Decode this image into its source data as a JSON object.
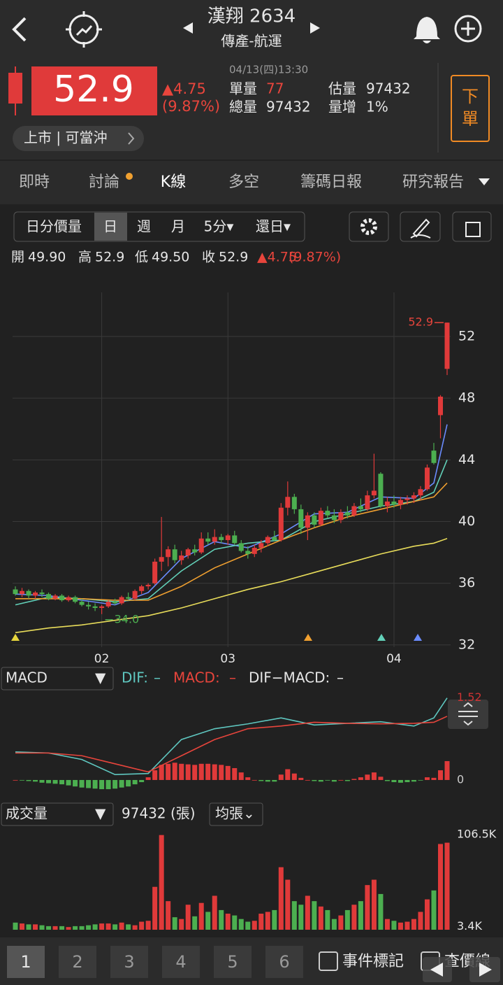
{
  "header": {
    "title": "漢翔 2634",
    "subtitle": "傳產-航運"
  },
  "quote": {
    "price": "52.9",
    "change": "▲4.75",
    "change_pct": "(9.87%)",
    "datetime": "04/13(四)13:30",
    "fields": [
      {
        "label": "單量",
        "value": "77"
      },
      {
        "label": "總量",
        "value": "97432"
      },
      {
        "label": "估量",
        "value": "97432"
      },
      {
        "label": "量增",
        "value": "1%"
      }
    ],
    "order_button": [
      "下",
      "單"
    ],
    "badge": "上市 | 可當沖"
  },
  "tabs": [
    "即時",
    "討論",
    "K線",
    "多空",
    "籌碼日報",
    "研究報告"
  ],
  "toolbar": [
    "日分價量",
    "日",
    "週",
    "月",
    "5分▾",
    "還日▾"
  ],
  "ohlc_bar": [
    "開",
    "49.90",
    "高",
    "52.9",
    "低",
    "49.50",
    "收",
    "52.9",
    "▲4.75",
    "(9.87%)"
  ],
  "macd_bar": {
    "selector": "MACD",
    "arrow": "▼",
    "items": [
      "DIF:",
      "–",
      "MACD:",
      "–",
      "DIF−MACD:",
      "–"
    ]
  },
  "volume_bar": {
    "selector": "成交量",
    "arrow": "▼",
    "total": "97432 (張)",
    "unit_button": "均張⌄"
  },
  "bottom_bar": {
    "tabs": [
      "1",
      "2",
      "3",
      "4",
      "5",
      "6"
    ],
    "checks": [
      "事件標記",
      "查價線"
    ]
  },
  "chart_data": [
    {
      "type": "candlestick",
      "ylim": [
        30.5,
        55.9
      ],
      "yticks": [
        32,
        36,
        40,
        44,
        48,
        52
      ],
      "grid": true,
      "categories": [
        null,
        null,
        null,
        null,
        null,
        null,
        null,
        null,
        null,
        null,
        null,
        null,
        null,
        "02",
        null,
        null,
        null,
        null,
        null,
        null,
        null,
        null,
        null,
        null,
        null,
        null,
        null,
        null,
        null,
        null,
        null,
        null,
        "03",
        null,
        null,
        null,
        null,
        null,
        null,
        null,
        null,
        null,
        null,
        null,
        null,
        null,
        null,
        null,
        null,
        null,
        null,
        null,
        null,
        null,
        null,
        null,
        null,
        "04",
        null,
        null,
        null,
        null,
        null,
        null,
        null,
        null
      ],
      "ohlc": [
        [
          35.6,
          35.8,
          35.2,
          35.3
        ],
        [
          35.3,
          35.7,
          35.1,
          35.5
        ],
        [
          35.5,
          35.6,
          35.0,
          35.2
        ],
        [
          35.2,
          35.5,
          35.0,
          35.4
        ],
        [
          35.4,
          35.6,
          35.1,
          35.3
        ],
        [
          35.3,
          35.4,
          34.9,
          35.0
        ],
        [
          35.0,
          35.3,
          34.9,
          35.2
        ],
        [
          35.2,
          35.3,
          34.8,
          34.9
        ],
        [
          34.9,
          35.2,
          34.8,
          35.1
        ],
        [
          35.1,
          35.2,
          34.7,
          34.8
        ],
        [
          34.8,
          35.0,
          34.5,
          34.6
        ],
        [
          34.6,
          34.8,
          34.3,
          34.5
        ],
        [
          34.5,
          34.7,
          34.2,
          34.4
        ],
        [
          34.4,
          34.6,
          34.0,
          34.5
        ],
        [
          34.5,
          34.9,
          34.4,
          34.8
        ],
        [
          34.8,
          35.0,
          34.6,
          34.7
        ],
        [
          34.7,
          35.2,
          34.6,
          35.1
        ],
        [
          35.1,
          35.4,
          34.9,
          35.0
        ],
        [
          35.0,
          35.6,
          34.9,
          35.5
        ],
        [
          35.5,
          35.9,
          35.3,
          35.8
        ],
        [
          35.8,
          36.0,
          35.6,
          35.9
        ],
        [
          36.0,
          37.6,
          35.9,
          37.4
        ],
        [
          37.4,
          40.3,
          36.8,
          37.7
        ],
        [
          37.7,
          38.4,
          37.1,
          38.2
        ],
        [
          38.2,
          38.5,
          37.3,
          37.5
        ],
        [
          37.5,
          38.1,
          37.2,
          37.8
        ],
        [
          37.8,
          38.3,
          37.6,
          38.2
        ],
        [
          38.2,
          38.5,
          37.8,
          38.0
        ],
        [
          38.0,
          39.3,
          37.9,
          38.9
        ],
        [
          38.9,
          39.3,
          38.5,
          38.7
        ],
        [
          38.7,
          39.5,
          38.5,
          39.0
        ],
        [
          39.0,
          39.2,
          38.6,
          38.8
        ],
        [
          38.8,
          39.2,
          38.5,
          39.1
        ],
        [
          39.1,
          39.4,
          38.5,
          38.6
        ],
        [
          38.6,
          38.8,
          38.0,
          38.1
        ],
        [
          38.1,
          38.4,
          37.6,
          37.9
        ],
        [
          37.9,
          38.5,
          37.7,
          38.3
        ],
        [
          38.3,
          38.8,
          38.0,
          38.6
        ],
        [
          38.6,
          39.1,
          38.4,
          39.0
        ],
        [
          39.0,
          39.4,
          38.7,
          38.8
        ],
        [
          38.8,
          41.2,
          38.7,
          40.9
        ],
        [
          40.9,
          42.6,
          40.4,
          41.6
        ],
        [
          41.6,
          41.8,
          40.5,
          40.8
        ],
        [
          40.8,
          41.1,
          39.2,
          39.6
        ],
        [
          39.6,
          40.6,
          38.8,
          40.4
        ],
        [
          40.4,
          40.6,
          39.6,
          39.8
        ],
        [
          39.8,
          40.9,
          39.7,
          40.7
        ],
        [
          40.7,
          41.0,
          40.2,
          40.4
        ],
        [
          40.4,
          40.8,
          39.9,
          40.1
        ],
        [
          40.1,
          40.8,
          39.9,
          40.6
        ],
        [
          40.6,
          41.0,
          40.2,
          40.4
        ],
        [
          40.4,
          41.2,
          40.3,
          41.0
        ],
        [
          41.0,
          41.5,
          40.6,
          40.8
        ],
        [
          40.8,
          42.0,
          40.7,
          41.7
        ],
        [
          41.7,
          44.4,
          41.5,
          42.0
        ],
        [
          43.1,
          43.2,
          40.9,
          41.0
        ],
        [
          41.0,
          41.6,
          40.6,
          41.3
        ],
        [
          41.3,
          41.7,
          40.9,
          41.1
        ],
        [
          41.1,
          41.6,
          40.8,
          41.4
        ],
        [
          41.4,
          41.7,
          41.1,
          41.5
        ],
        [
          41.5,
          41.9,
          41.2,
          41.7
        ],
        [
          41.7,
          42.3,
          41.4,
          42.1
        ],
        [
          42.1,
          43.7,
          42.0,
          43.5
        ],
        [
          44.6,
          45.1,
          43.7,
          43.8
        ],
        [
          46.9,
          48.2,
          45.4,
          48.1
        ],
        [
          49.9,
          52.9,
          49.5,
          52.9
        ]
      ],
      "up_color": "#e03a3a",
      "down_color": "#4caf50",
      "ma_x": [
        0,
        5,
        10,
        15,
        20,
        25,
        30,
        35,
        40,
        45,
        50,
        55,
        60,
        63,
        65
      ],
      "ma": [
        {
          "color": "#6b8cff",
          "values": [
            35.3,
            35.2,
            34.9,
            34.6,
            35.4,
            37.6,
            38.7,
            38.3,
            39.2,
            40.5,
            40.6,
            41.6,
            41.5,
            42.5,
            46.3
          ]
        },
        {
          "color": "#62d0b8",
          "values": [
            34.6,
            35.1,
            35.0,
            34.8,
            35.0,
            36.8,
            38.2,
            38.6,
            38.8,
            40.0,
            40.5,
            41.0,
            41.3,
            41.9,
            44.0
          ]
        },
        {
          "color": "#f0a030",
          "values": [
            35.0,
            35.0,
            35.0,
            34.9,
            34.9,
            35.8,
            37.0,
            37.9,
            38.8,
            39.6,
            40.3,
            40.8,
            41.3,
            41.6,
            42.5
          ]
        },
        {
          "color": "#e8dc5a",
          "values": [
            32.8,
            33.1,
            33.3,
            33.6,
            33.9,
            34.4,
            35.0,
            35.6,
            36.1,
            36.7,
            37.3,
            37.9,
            38.4,
            38.6,
            38.9
          ]
        }
      ],
      "max_label": "52.9",
      "min_label": "34.0"
    },
    {
      "type": "macd",
      "ylim": [
        -0.26,
        1.62
      ],
      "yticks": [
        0,
        1.52
      ],
      "x": [
        0,
        5,
        10,
        15,
        20,
        25,
        30,
        35,
        40,
        45,
        50,
        55,
        60,
        63,
        65
      ],
      "series": [
        {
          "color": "#5fc7c0",
          "values": [
            0.52,
            0.5,
            0.38,
            0.1,
            0.12,
            0.75,
            0.95,
            1.04,
            1.15,
            1.02,
            1.05,
            1.08,
            1.0,
            1.15,
            1.52
          ]
        },
        {
          "color": "#e8453c",
          "values": [
            0.5,
            0.5,
            0.45,
            0.3,
            0.15,
            0.45,
            0.75,
            0.95,
            1.0,
            1.07,
            1.05,
            1.04,
            1.05,
            1.07,
            1.18
          ]
        }
      ],
      "histogram": [
        0.0,
        -0.01,
        -0.02,
        -0.03,
        -0.05,
        -0.06,
        -0.07,
        -0.08,
        -0.1,
        -0.12,
        -0.14,
        -0.15,
        -0.16,
        -0.17,
        -0.17,
        -0.16,
        -0.14,
        -0.12,
        -0.08,
        -0.04,
        0.05,
        0.18,
        0.28,
        0.3,
        0.32,
        0.3,
        0.29,
        0.28,
        0.3,
        0.3,
        0.29,
        0.28,
        0.26,
        0.22,
        0.14,
        0.05,
        0.0,
        -0.02,
        -0.03,
        -0.03,
        0.1,
        0.2,
        0.12,
        0.04,
        0.0,
        -0.02,
        -0.03,
        -0.01,
        -0.03,
        0.0,
        -0.02,
        0.02,
        0.05,
        0.1,
        0.14,
        0.06,
        -0.02,
        -0.04,
        -0.05,
        -0.04,
        -0.03,
        -0.01,
        0.05,
        0.04,
        0.18,
        0.35
      ]
    },
    {
      "type": "bar",
      "ylim": [
        0,
        106500
      ],
      "yticks": [
        {
          "value": 106500,
          "label": "106.5K"
        },
        {
          "value": 3400,
          "label": "3.4K"
        }
      ],
      "values": [
        8000,
        7000,
        6000,
        6000,
        5000,
        4000,
        4000,
        4000,
        3000,
        4000,
        4000,
        5000,
        6000,
        7000,
        7000,
        6000,
        8000,
        6000,
        5000,
        9000,
        10000,
        48000,
        106000,
        32000,
        14000,
        12000,
        28000,
        15000,
        30000,
        20000,
        38000,
        22000,
        18000,
        16000,
        12000,
        9000,
        10000,
        18000,
        20000,
        22000,
        70000,
        56000,
        32000,
        28000,
        38000,
        32000,
        26000,
        22000,
        12000,
        16000,
        22000,
        28000,
        32000,
        50000,
        56000,
        40000,
        12000,
        10000,
        8000,
        9000,
        12000,
        20000,
        34000,
        44000,
        96000,
        97432
      ]
    }
  ]
}
